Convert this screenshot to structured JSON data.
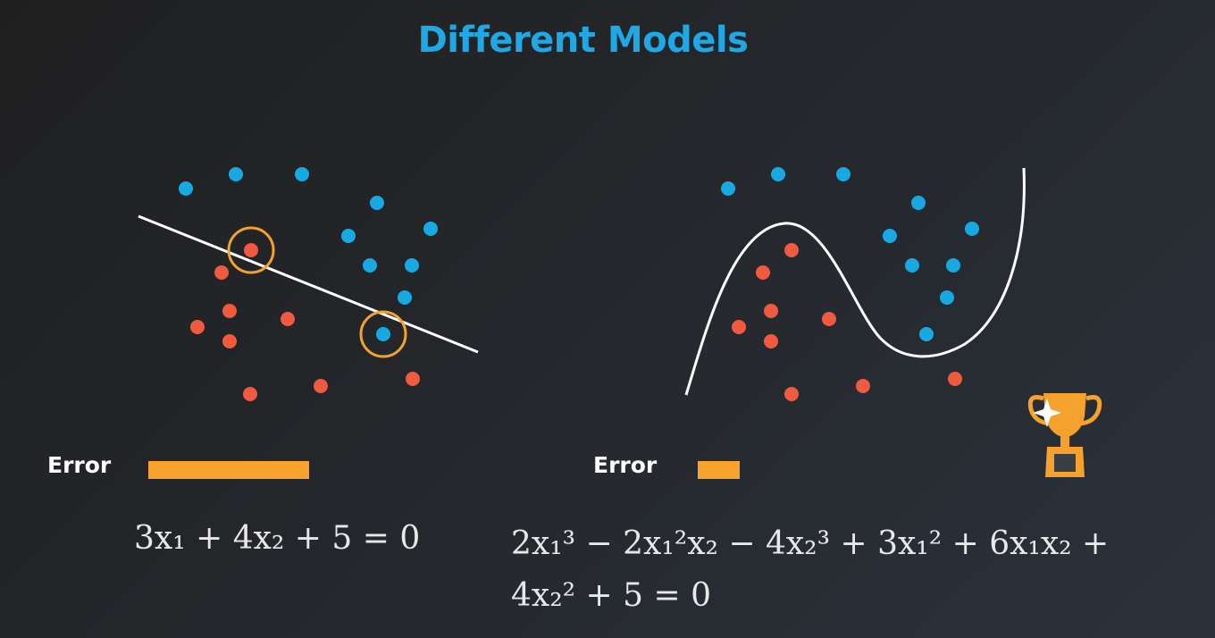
{
  "title": "Different Models",
  "colors": {
    "title": "#1fa8e3",
    "blue_point": "#19a9e2",
    "red_point": "#f05a3e",
    "boundary": "#ffffff",
    "highlight_ring": "#f5a12e",
    "error_bar": "#f9a32f",
    "trophy": "#f5a12e"
  },
  "left_model": {
    "error_label": "Error",
    "error_level": 1.0,
    "equation_text": "3x₁ + 4x₂ + 5 = 0"
  },
  "right_model": {
    "error_label": "Error",
    "error_level": 0.26,
    "equation_line1": "2x₁³ − 2x₁²x₂ − 4x₂³ + 3x₁² + 6x₁x₂ +",
    "equation_line2": "4x₂² + 5 = 0",
    "badge_icon": "trophy-icon"
  }
}
